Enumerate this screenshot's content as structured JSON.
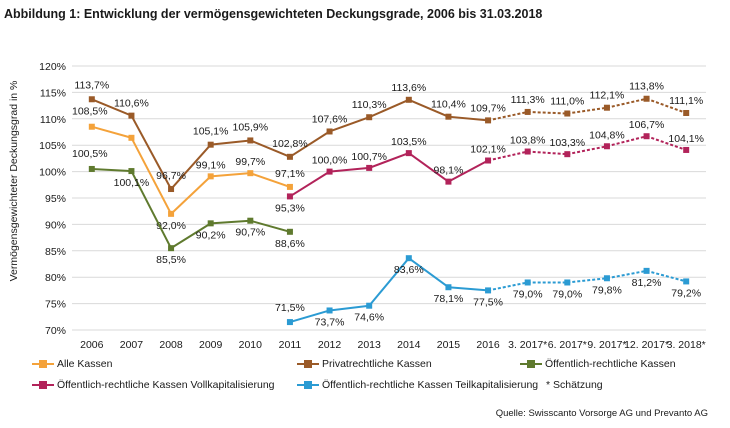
{
  "title": "Abbildung 1: Entwicklung der vermögensgewichteten Deckungsgrade, 2006 bis 31.03.2018",
  "source": "Quelle: Swisscanto Vorsorge AG und Prevanto AG",
  "footnote": "* Schätzung",
  "chart_data": {
    "type": "line",
    "ylabel": "Vermögensgewichteter Deckungsgrad in %",
    "ylim": [
      70,
      120
    ],
    "yticks": [
      "70%",
      "75%",
      "80%",
      "85%",
      "90%",
      "95%",
      "100%",
      "105%",
      "110%",
      "115%",
      "120%"
    ],
    "grid": true,
    "legend": "bottom",
    "categories": [
      "2006",
      "2007",
      "2008",
      "2009",
      "2010",
      "2011",
      "2012",
      "2013",
      "2014",
      "2015",
      "2016",
      "3. 2017*",
      "6. 2017*",
      "9. 2017*",
      "12. 2017*",
      "3. 2018*"
    ],
    "estimate_from_index": 10,
    "series": [
      {
        "name": "Alle Kassen",
        "color": "#f4a23a",
        "values": [
          108.5,
          106.4,
          92.0,
          99.1,
          99.7,
          97.1,
          null,
          null,
          null,
          null,
          null,
          null,
          null,
          null,
          null,
          null
        ],
        "labels": [
          "108,5%",
          "",
          "92,0%",
          "99,1%",
          "99,7%",
          "97,1%",
          "",
          "",
          "",
          "",
          "",
          "",
          "",
          "",
          "",
          ""
        ]
      },
      {
        "name": "Privatrechtliche Kassen",
        "color": "#9a5a28",
        "values": [
          113.7,
          110.6,
          96.7,
          105.1,
          105.9,
          102.8,
          107.6,
          110.3,
          113.6,
          110.4,
          109.7,
          111.3,
          111.0,
          112.1,
          113.8,
          111.1
        ],
        "labels": [
          "113,7%",
          "110,6%",
          "96,7%",
          "105,1%",
          "105,9%",
          "102,8%",
          "107,6%",
          "110,3%",
          "113,6%",
          "110,4%",
          "109,7%",
          "111,3%",
          "111,0%",
          "112,1%",
          "113,8%",
          "111,1%"
        ]
      },
      {
        "name": "Öffentlich-rechtliche Kassen",
        "color": "#5f7a2e",
        "values": [
          100.5,
          100.1,
          85.5,
          90.2,
          90.7,
          88.6,
          null,
          null,
          null,
          null,
          null,
          null,
          null,
          null,
          null,
          null
        ],
        "labels": [
          "100,5%",
          "100,1%",
          "85,5%",
          "90,2%",
          "90,7%",
          "88,6%",
          "",
          "",
          "",
          "",
          "",
          "",
          "",
          "",
          "",
          ""
        ]
      },
      {
        "name": "Öffentlich-rechtliche Kassen Vollkapitalisierung",
        "color": "#b2235a",
        "values": [
          null,
          null,
          null,
          null,
          null,
          95.3,
          100.0,
          100.7,
          103.5,
          98.1,
          102.1,
          103.8,
          103.3,
          104.8,
          106.7,
          104.1
        ],
        "labels": [
          "",
          "",
          "",
          "",
          "",
          "95,3%",
          "100,0%",
          "100,7%",
          "103,5%",
          "98,1%",
          "102,1%",
          "103,8%",
          "103,3%",
          "104,8%",
          "106,7%",
          "104,1%"
        ]
      },
      {
        "name": "Öffentlich-rechtliche Kassen Teilkapitalisierung",
        "color": "#2b9bd3",
        "values": [
          null,
          null,
          null,
          null,
          null,
          71.5,
          73.7,
          74.6,
          83.6,
          78.1,
          77.5,
          79.0,
          79.0,
          79.8,
          81.2,
          79.2
        ],
        "labels": [
          "",
          "",
          "",
          "",
          "",
          "71,5%",
          "73,7%",
          "74,6%",
          "83,6%",
          "78,1%",
          "77,5%",
          "79,0%",
          "79,0%",
          "79,8%",
          "81,2%",
          "79,2%"
        ]
      }
    ]
  }
}
